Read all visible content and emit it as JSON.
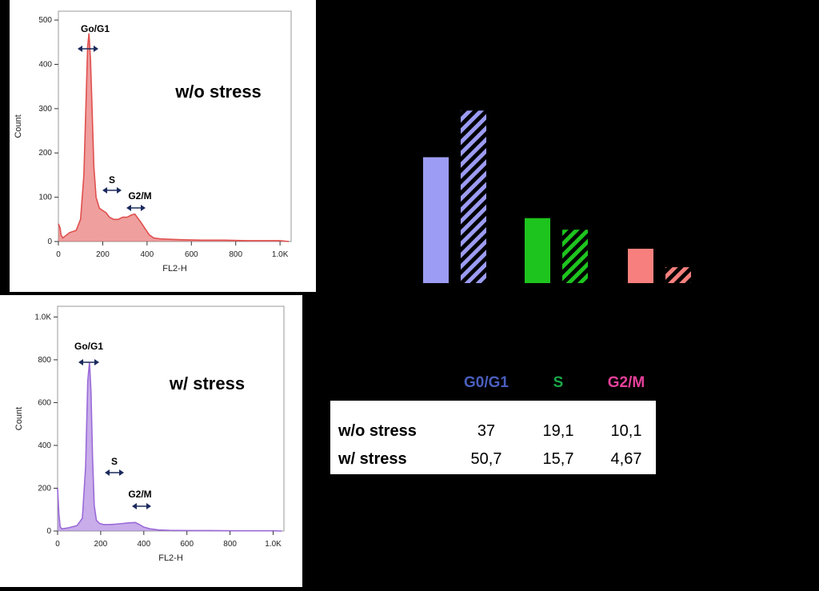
{
  "chart_data": [
    {
      "type": "area",
      "xlabel": "FL2-H",
      "ylabel": "Count",
      "xlim": [
        0,
        1050
      ],
      "ylim": [
        0,
        520
      ],
      "x_ticks": [
        "0",
        "200",
        "400",
        "600",
        "800",
        "1.0K"
      ],
      "x_tick_values": [
        0,
        200,
        400,
        600,
        800,
        1000
      ],
      "y_ticks": [
        "0",
        "100",
        "200",
        "300",
        "400",
        "500"
      ],
      "y_tick_values": [
        0,
        100,
        200,
        300,
        400,
        500
      ],
      "annotations": [
        "Go/G1",
        "S",
        "G2/M",
        "w/o stress"
      ],
      "color": "#e0504e",
      "x": [
        0,
        8,
        12,
        20,
        50,
        80,
        100,
        115,
        125,
        132,
        138,
        145,
        152,
        160,
        170,
        185,
        200,
        215,
        230,
        250,
        270,
        290,
        310,
        330,
        345,
        355,
        370,
        390,
        410,
        430,
        460,
        500,
        560,
        650,
        750,
        850,
        950,
        1000,
        1040
      ],
      "y": [
        40,
        30,
        15,
        8,
        20,
        25,
        50,
        150,
        320,
        440,
        470,
        410,
        300,
        170,
        100,
        75,
        70,
        65,
        55,
        50,
        50,
        55,
        55,
        60,
        62,
        55,
        45,
        30,
        15,
        8,
        6,
        5,
        4,
        3,
        3,
        2,
        2,
        2,
        0
      ]
    },
    {
      "type": "area",
      "xlabel": "FL2-H",
      "ylabel": "Count",
      "xlim": [
        0,
        1050
      ],
      "ylim": [
        0,
        1050
      ],
      "x_ticks": [
        "0",
        "200",
        "400",
        "600",
        "800",
        "1.0K"
      ],
      "x_tick_values": [
        0,
        200,
        400,
        600,
        800,
        1000
      ],
      "y_ticks": [
        "0",
        "200",
        "400",
        "600",
        "800",
        "1.0K"
      ],
      "y_tick_values": [
        0,
        200,
        400,
        600,
        800,
        1000
      ],
      "annotations": [
        "Go/G1",
        "S",
        "G2/M",
        "w/ stress"
      ],
      "color": "#9b6ad8",
      "x": [
        0,
        6,
        12,
        20,
        50,
        90,
        115,
        130,
        140,
        148,
        155,
        162,
        170,
        180,
        195,
        215,
        240,
        270,
        300,
        330,
        360,
        380,
        400,
        430,
        470,
        520,
        600,
        700,
        800,
        900,
        1000,
        1040
      ],
      "y": [
        200,
        80,
        20,
        10,
        15,
        25,
        60,
        300,
        700,
        790,
        650,
        350,
        120,
        50,
        35,
        30,
        30,
        32,
        35,
        38,
        40,
        30,
        18,
        10,
        5,
        3,
        2,
        2,
        1,
        1,
        1,
        0
      ]
    },
    {
      "type": "bar",
      "categories": [
        "G0/G1",
        "S",
        "G2/M"
      ],
      "series": [
        {
          "name": "w/o stress",
          "values": [
            37,
            19.1,
            10.1
          ],
          "pattern": "solid"
        },
        {
          "name": "w/ stress",
          "values": [
            50.7,
            15.7,
            4.67
          ],
          "pattern": "hatched"
        }
      ],
      "colors": [
        "#9c9cf4",
        "#1ec41e",
        "#f7807e"
      ],
      "ylim": [
        0,
        55
      ]
    }
  ],
  "table": {
    "headers": [
      {
        "label": "G0/G1",
        "color": "#4a5fbf"
      },
      {
        "label": "S",
        "color": "#1aa84a"
      },
      {
        "label": "G2/M",
        "color": "#e6409a"
      }
    ],
    "rows": [
      {
        "label": "w/o stress",
        "values": [
          "37",
          "19,1",
          "10,1"
        ]
      },
      {
        "label": "w/ stress",
        "values": [
          "50,7",
          "15,7",
          "4,67"
        ]
      }
    ]
  }
}
